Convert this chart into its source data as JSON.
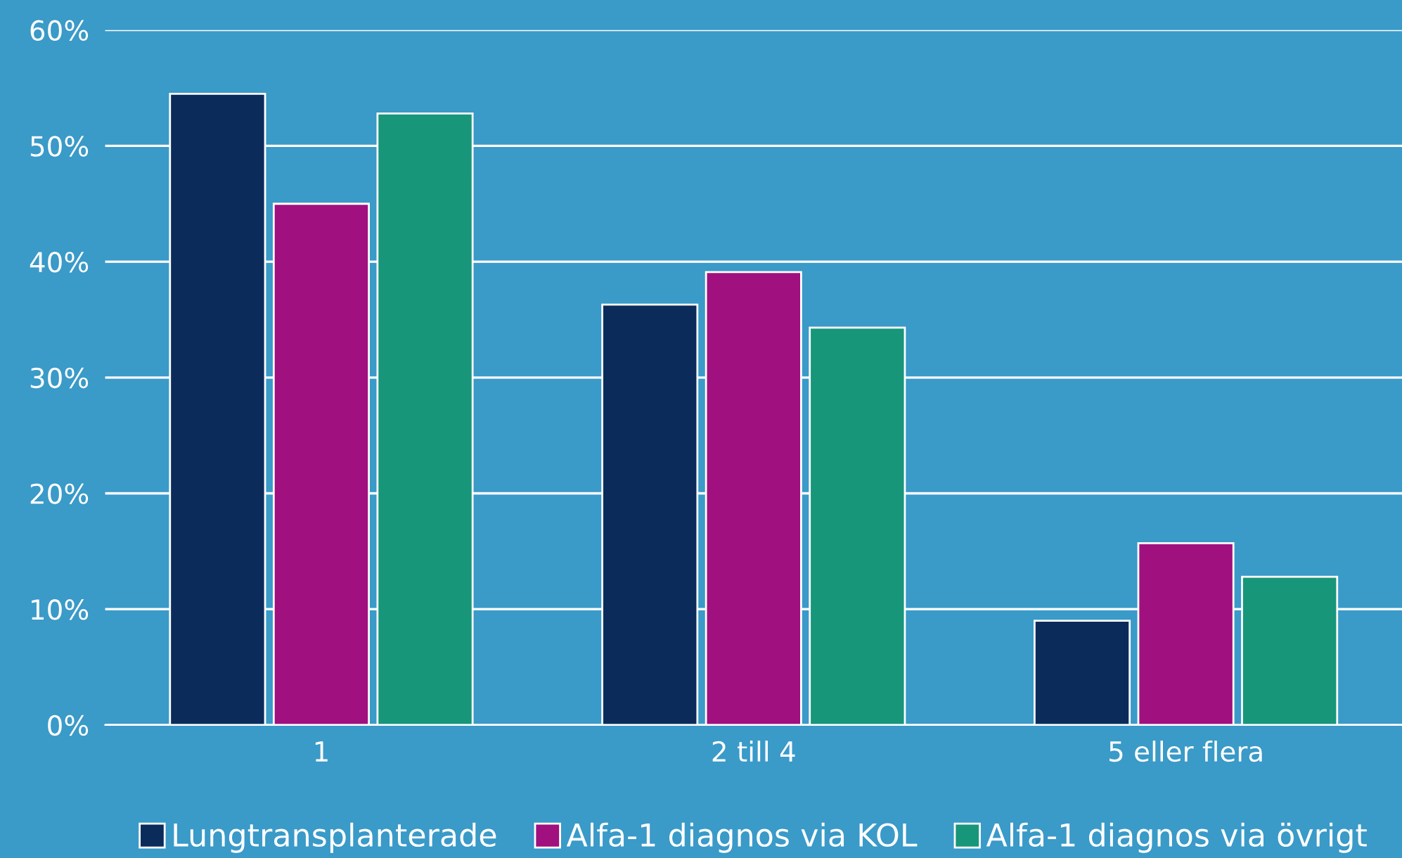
{
  "chart_data": {
    "type": "bar",
    "categories": [
      "1",
      "2 till 4",
      "5 eller flera"
    ],
    "series": [
      {
        "name": "Lungtransplanterade",
        "color": "#0b2c5b",
        "values": [
          54.5,
          36.3,
          9.0
        ]
      },
      {
        "name": "Alfa-1 diagnos via KOL",
        "color": "#a0107f",
        "values": [
          45.0,
          39.1,
          15.7
        ]
      },
      {
        "name": "Alfa-1 diagnos via övrigt",
        "color": "#17967a",
        "values": [
          52.8,
          34.3,
          12.8
        ]
      }
    ],
    "ylim": [
      0,
      60
    ],
    "yticks": [
      {
        "value": 0,
        "label": "0%"
      },
      {
        "value": 10,
        "label": "10%"
      },
      {
        "value": 20,
        "label": "20%"
      },
      {
        "value": 30,
        "label": "30%"
      },
      {
        "value": 40,
        "label": "40%"
      },
      {
        "value": 50,
        "label": "50%"
      },
      {
        "value": 60,
        "label": "60%"
      }
    ],
    "grid": "y",
    "legend": "bottom"
  }
}
